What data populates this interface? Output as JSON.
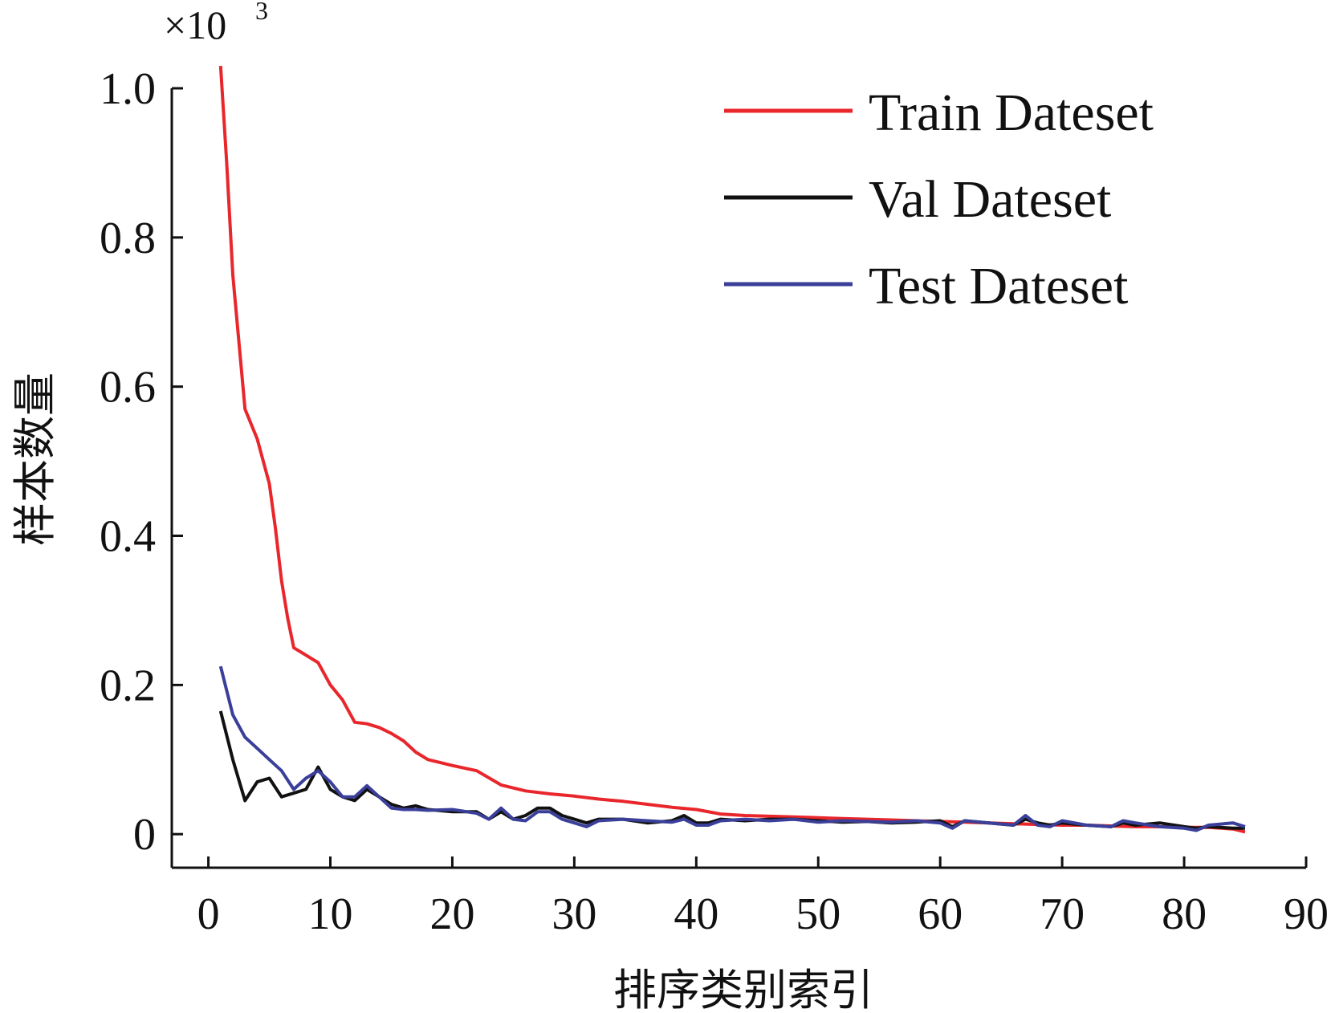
{
  "chart_data": {
    "type": "line",
    "title": "",
    "xlabel": "排序类别索引",
    "ylabel": "样本数量",
    "y_multiplier": {
      "base": "×10",
      "exponent": "3"
    },
    "xlim": [
      -3,
      90
    ],
    "ylim": [
      -0.045,
      1.0
    ],
    "xticks": [
      0,
      10,
      20,
      30,
      40,
      50,
      60,
      70,
      80,
      90
    ],
    "yticks": [
      0,
      0.2,
      0.4,
      0.6,
      0.8,
      1.0
    ],
    "ytick_labels": [
      "0",
      "0.2",
      "0.4",
      "0.6",
      "0.8",
      "1.0"
    ],
    "grid": false,
    "legend_position": "top-right",
    "series": [
      {
        "name": "Train Dateset",
        "color": "#e8262b",
        "x": [
          1,
          1.5,
          2,
          3,
          4,
          5,
          5.5,
          6,
          6.5,
          7,
          8,
          9,
          10,
          11,
          12,
          13,
          14,
          15,
          16,
          17,
          18,
          20,
          22,
          24,
          26,
          28,
          30,
          32,
          34,
          36,
          38,
          40,
          42,
          44,
          46,
          48,
          50,
          52,
          54,
          56,
          58,
          60,
          62,
          64,
          66,
          68,
          70,
          72,
          74,
          76,
          78,
          80,
          82,
          84,
          85
        ],
        "values": [
          1.03,
          0.9,
          0.75,
          0.57,
          0.53,
          0.47,
          0.41,
          0.34,
          0.29,
          0.25,
          0.24,
          0.23,
          0.2,
          0.18,
          0.15,
          0.148,
          0.143,
          0.135,
          0.125,
          0.11,
          0.1,
          0.092,
          0.085,
          0.066,
          0.058,
          0.054,
          0.051,
          0.047,
          0.044,
          0.04,
          0.036,
          0.033,
          0.027,
          0.025,
          0.024,
          0.023,
          0.022,
          0.021,
          0.02,
          0.019,
          0.018,
          0.017,
          0.016,
          0.015,
          0.014,
          0.013,
          0.012,
          0.012,
          0.011,
          0.01,
          0.01,
          0.009,
          0.009,
          0.007,
          0.003
        ]
      },
      {
        "name": "Val Dateset",
        "color": "#111111",
        "x": [
          1,
          2,
          3,
          4,
          5,
          6,
          7,
          8,
          9,
          10,
          11,
          12,
          13,
          14,
          15,
          16,
          17,
          18,
          20,
          22,
          23,
          24,
          25,
          26,
          27,
          28,
          29,
          30,
          31,
          32,
          34,
          36,
          38,
          39,
          40,
          41,
          42,
          44,
          46,
          48,
          50,
          52,
          54,
          56,
          58,
          60,
          61,
          62,
          64,
          66,
          67,
          68,
          69,
          70,
          72,
          74,
          75,
          76,
          78,
          80,
          81,
          82,
          84,
          85
        ],
        "values": [
          0.165,
          0.1,
          0.045,
          0.07,
          0.075,
          0.05,
          0.055,
          0.06,
          0.09,
          0.06,
          0.05,
          0.045,
          0.06,
          0.05,
          0.04,
          0.035,
          0.038,
          0.033,
          0.03,
          0.03,
          0.02,
          0.03,
          0.02,
          0.025,
          0.035,
          0.035,
          0.025,
          0.02,
          0.015,
          0.02,
          0.02,
          0.015,
          0.018,
          0.025,
          0.015,
          0.015,
          0.02,
          0.018,
          0.02,
          0.02,
          0.018,
          0.016,
          0.017,
          0.015,
          0.016,
          0.018,
          0.01,
          0.018,
          0.015,
          0.012,
          0.02,
          0.015,
          0.012,
          0.015,
          0.012,
          0.01,
          0.015,
          0.012,
          0.015,
          0.01,
          0.008,
          0.01,
          0.008,
          0.008
        ]
      },
      {
        "name": "Test Dateset",
        "color": "#3a3f9a",
        "x": [
          1,
          2,
          3,
          4,
          5,
          6,
          7,
          8,
          9,
          10,
          11,
          12,
          13,
          14,
          15,
          16,
          17,
          18,
          20,
          22,
          23,
          24,
          25,
          26,
          27,
          28,
          29,
          30,
          31,
          32,
          34,
          36,
          38,
          39,
          40,
          41,
          42,
          44,
          46,
          48,
          50,
          52,
          54,
          56,
          58,
          60,
          61,
          62,
          64,
          66,
          67,
          68,
          69,
          70,
          72,
          74,
          75,
          76,
          78,
          80,
          81,
          82,
          84,
          85
        ],
        "values": [
          0.225,
          0.16,
          0.13,
          0.115,
          0.1,
          0.085,
          0.06,
          0.075,
          0.085,
          0.07,
          0.05,
          0.05,
          0.065,
          0.05,
          0.035,
          0.033,
          0.033,
          0.032,
          0.033,
          0.028,
          0.02,
          0.035,
          0.02,
          0.018,
          0.03,
          0.03,
          0.02,
          0.015,
          0.01,
          0.018,
          0.02,
          0.018,
          0.016,
          0.02,
          0.012,
          0.012,
          0.018,
          0.02,
          0.018,
          0.02,
          0.016,
          0.018,
          0.017,
          0.016,
          0.018,
          0.015,
          0.008,
          0.018,
          0.015,
          0.012,
          0.025,
          0.012,
          0.01,
          0.018,
          0.012,
          0.01,
          0.018,
          0.015,
          0.01,
          0.008,
          0.005,
          0.012,
          0.015,
          0.01
        ]
      }
    ]
  }
}
